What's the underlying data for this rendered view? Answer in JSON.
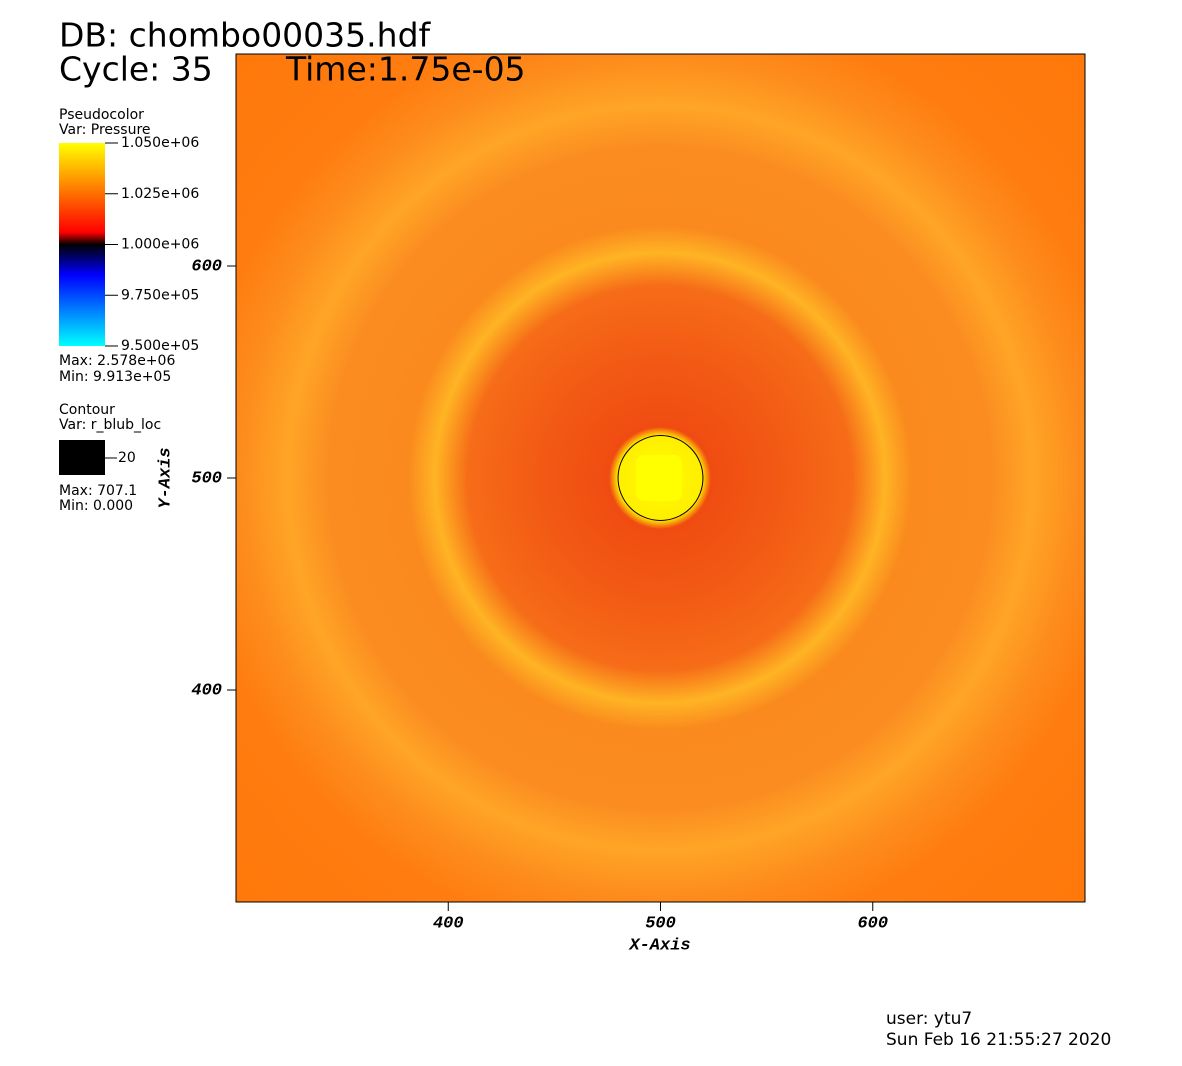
{
  "chart_data": {
    "type": "pseudocolor",
    "title": "DB: chombo00035.hdf",
    "cycle": "Cycle: 35",
    "time": "Time:1.75e-05",
    "x_label": "X-Axis",
    "y_label": "Y-Axis",
    "xlim": [
      300,
      700
    ],
    "ylim": [
      300,
      700
    ],
    "xticks": [
      400,
      500,
      600
    ],
    "yticks": [
      400,
      500,
      600
    ],
    "legend": {
      "title": "Pseudocolor",
      "var": "Var: Pressure",
      "clim": [
        950000,
        1050000
      ],
      "ticks": [
        {
          "value": 1050000,
          "label": "1.050e+06"
        },
        {
          "value": 1025000,
          "label": "1.025e+06"
        },
        {
          "value": 1000000,
          "label": "1.000e+06"
        },
        {
          "value": 975000,
          "label": "9.750e+05"
        },
        {
          "value": 950000,
          "label": "9.500e+05"
        }
      ],
      "max": "Max: 2.578e+06",
      "min": "Min: 9.913e+05"
    },
    "contour": {
      "title": "Contour",
      "var": "Var: r_blub_loc",
      "levels": [
        20
      ],
      "color": "#000000",
      "max": "Max: 707.1",
      "min": "Min: 0.000"
    },
    "user": "user: ytu7",
    "date": "Sun Feb 16 21:55:27 2020"
  }
}
